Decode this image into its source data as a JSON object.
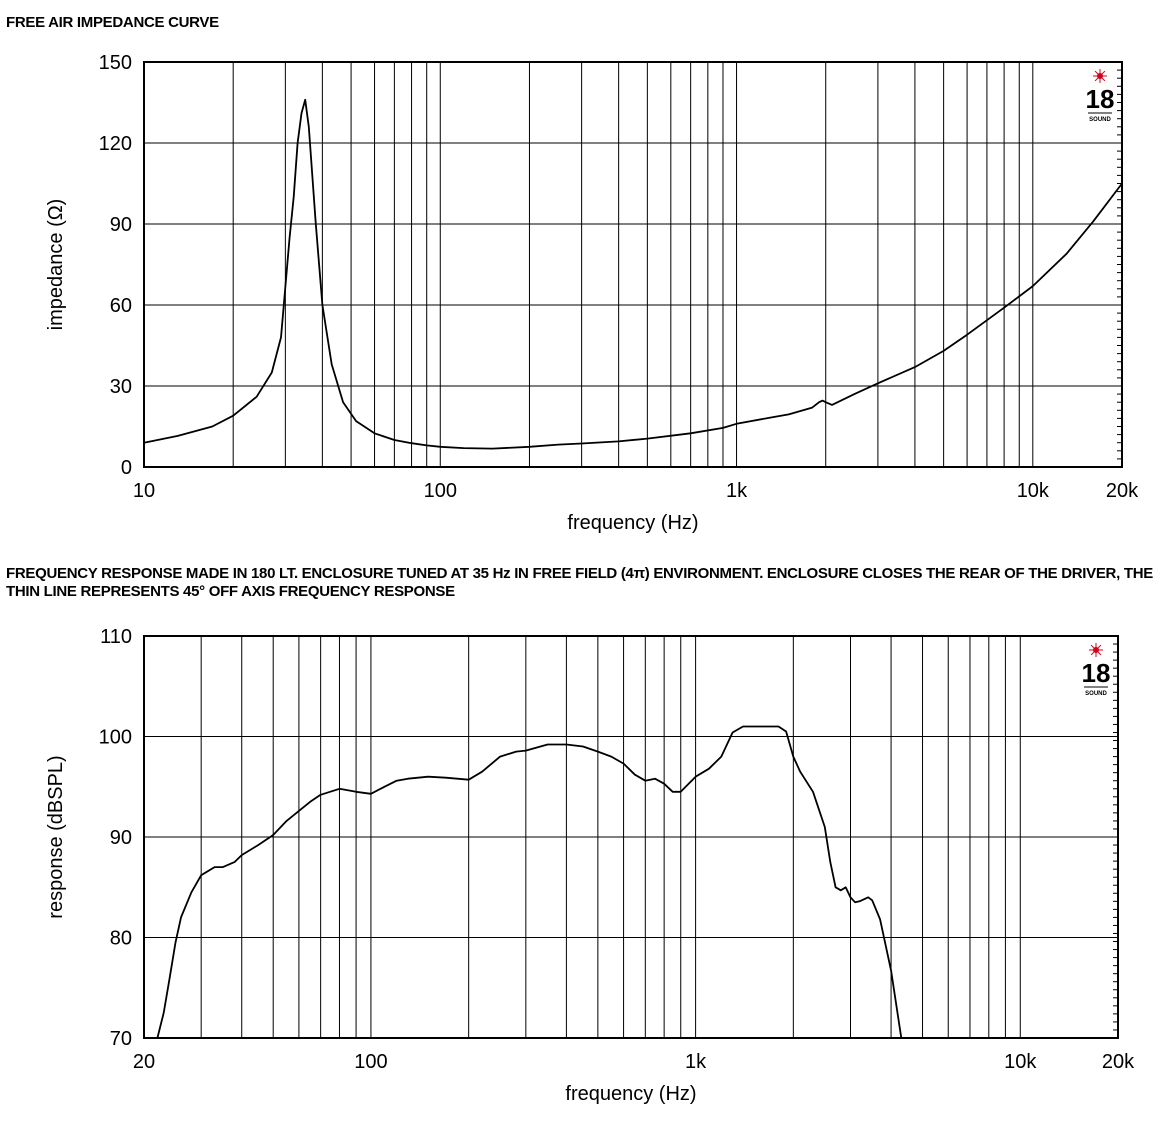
{
  "charts": {
    "impedance": {
      "section_title": "FREE AIR IMPEDANCE CURVE"
    },
    "response": {
      "section_title": "FREQUENCY RESPONSE MADE IN 180 LT. ENCLOSURE TUNED AT 35 Hz IN FREE FIELD (4π) ENVIRONMENT. ENCLOSURE CLOSES THE REAR OF THE DRIVER, THE THIN LINE REPRESENTS 45° OFF AXIS FREQUENCY RESPONSE"
    }
  },
  "logo": {
    "text": "18",
    "subtext": "SOUND",
    "accent_color": "#d0021b"
  },
  "chart_data": [
    {
      "type": "line",
      "title": "FREE AIR IMPEDANCE CURVE",
      "xlabel": "frequency (Hz)",
      "ylabel": "impedance (Ω)",
      "x_scale": "log",
      "xlim": [
        10,
        20000
      ],
      "ylim": [
        0,
        150
      ],
      "x_ticks": [
        10,
        100,
        1000,
        10000,
        20000
      ],
      "x_tick_labels": [
        "10",
        "100",
        "1k",
        "10k",
        "20k"
      ],
      "y_ticks": [
        0,
        30,
        60,
        90,
        120,
        150
      ],
      "y_tick_labels": [
        "0",
        "30",
        "60",
        "90",
        "120",
        "150"
      ],
      "grid": true,
      "series": [
        {
          "color": "#000000",
          "x": [
            10,
            13,
            17,
            20,
            24,
            27,
            29,
            31,
            32,
            33,
            34,
            35,
            36,
            38,
            40,
            43,
            47,
            52,
            60,
            70,
            80,
            90,
            100,
            120,
            150,
            200,
            250,
            300,
            400,
            500,
            700,
            900,
            1000,
            1300,
            1500,
            1800,
            1900,
            1950,
            2000,
            2100,
            2500,
            3000,
            4000,
            5000,
            6000,
            8000,
            10000,
            13000,
            16000,
            20000
          ],
          "y": [
            9,
            11.5,
            15,
            19,
            26,
            35,
            48,
            85,
            100,
            120,
            131,
            136,
            126,
            90,
            60,
            38,
            24,
            17,
            12.5,
            10,
            8.8,
            8,
            7.5,
            7,
            6.8,
            7.5,
            8.3,
            8.7,
            9.5,
            10.5,
            12.5,
            14.5,
            16,
            18.3,
            19.5,
            22,
            24,
            24.6,
            24,
            23,
            27,
            31,
            37,
            43,
            49,
            59,
            67,
            79,
            91,
            105
          ]
        }
      ]
    },
    {
      "type": "line",
      "title": "FREQUENCY RESPONSE MADE IN 180 LT. ENCLOSURE TUNED AT 35 Hz IN FREE FIELD (4π) ENVIRONMENT. ENCLOSURE CLOSES THE REAR OF THE DRIVER, THE THIN LINE REPRESENTS 45° OFF AXIS FREQUENCY RESPONSE",
      "xlabel": "frequency (Hz)",
      "ylabel": "response (dBSPL)",
      "x_scale": "log",
      "xlim": [
        20,
        20000
      ],
      "ylim": [
        70,
        110
      ],
      "x_ticks": [
        20,
        100,
        1000,
        10000,
        20000
      ],
      "x_tick_labels": [
        "20",
        "100",
        "1k",
        "10k",
        "20k"
      ],
      "y_ticks": [
        70,
        80,
        90,
        100,
        110
      ],
      "y_tick_labels": [
        "70",
        "80",
        "90",
        "100",
        "110"
      ],
      "grid": true,
      "series": [
        {
          "color": "#000000",
          "x": [
            22,
            23,
            24,
            25,
            26,
            28,
            30,
            33,
            35,
            38,
            40,
            45,
            50,
            55,
            60,
            65,
            70,
            80,
            90,
            100,
            110,
            120,
            130,
            150,
            170,
            200,
            220,
            250,
            280,
            300,
            350,
            400,
            450,
            500,
            550,
            600,
            650,
            700,
            750,
            800,
            850,
            900,
            1000,
            1100,
            1200,
            1300,
            1400,
            1500,
            1700,
            1800,
            1900,
            2000,
            2100,
            2300,
            2500,
            2600,
            2700,
            2800,
            2900,
            3000,
            3100,
            3200,
            3300,
            3400,
            3500,
            3700,
            4000,
            4300
          ],
          "y": [
            70,
            72.5,
            76,
            79.5,
            82,
            84.5,
            86.2,
            87,
            87,
            87.5,
            88.2,
            89.2,
            90.2,
            91.6,
            92.6,
            93.5,
            94.2,
            94.8,
            94.5,
            94.3,
            95,
            95.6,
            95.8,
            96,
            95.9,
            95.7,
            96.5,
            98,
            98.5,
            98.6,
            99.2,
            99.2,
            99,
            98.5,
            98,
            97.3,
            96.2,
            95.6,
            95.8,
            95.3,
            94.5,
            94.5,
            96,
            96.8,
            98,
            100.4,
            101,
            101,
            101,
            101,
            100.5,
            98,
            96.5,
            94.5,
            91,
            87.5,
            85,
            84.7,
            85,
            84,
            83.5,
            83.6,
            83.8,
            84,
            83.7,
            81.8,
            76.7,
            70
          ]
        }
      ]
    }
  ]
}
